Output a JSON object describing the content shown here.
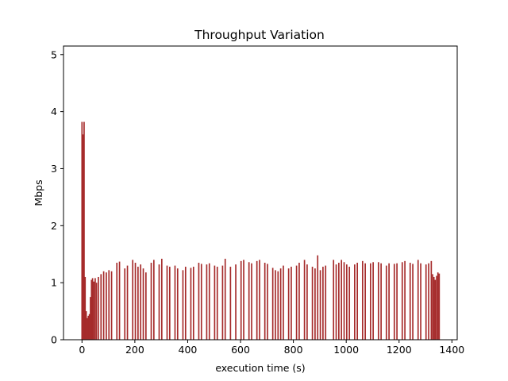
{
  "chart_data": {
    "type": "bar",
    "title": "Throughput Variation",
    "xlabel": "execution time (s)",
    "ylabel": "Mbps",
    "xlim": [
      -70,
      1420
    ],
    "ylim": [
      0,
      5.15
    ],
    "xticks": [
      0,
      200,
      400,
      600,
      800,
      1000,
      1200,
      1400
    ],
    "yticks": [
      0,
      1,
      2,
      3,
      4,
      5
    ],
    "grid": false,
    "bar_color": "#a52a2a",
    "bar_width": 5,
    "series": [
      {
        "x": [
          0,
          4,
          8,
          12,
          16,
          20,
          24,
          28,
          32,
          36,
          40,
          45,
          50,
          55,
          62,
          72,
          82,
          92,
          102,
          112,
          132,
          142,
          162,
          172,
          192,
          202,
          212,
          222,
          232,
          242,
          262,
          272,
          292,
          302,
          322,
          332,
          352,
          362,
          382,
          392,
          412,
          422,
          442,
          452,
          472,
          482,
          502,
          512,
          532,
          542,
          562,
          582,
          602,
          612,
          632,
          642,
          662,
          672,
          692,
          702,
          722,
          732,
          742,
          752,
          762,
          782,
          792,
          812,
          822,
          842,
          852,
          872,
          882,
          892,
          902,
          912,
          922,
          952,
          962,
          972,
          982,
          992,
          1002,
          1012,
          1032,
          1042,
          1062,
          1072,
          1092,
          1102,
          1122,
          1132,
          1152,
          1162,
          1182,
          1192,
          1212,
          1222,
          1242,
          1252,
          1272,
          1282,
          1302,
          1312,
          1322,
          1327,
          1332,
          1337,
          1342,
          1347,
          1352
        ],
        "values": [
          3.82,
          3.6,
          3.82,
          1.1,
          0.5,
          0.38,
          0.42,
          0.45,
          0.75,
          1.05,
          1.08,
          1.02,
          1.08,
          1.0,
          1.1,
          1.15,
          1.2,
          1.18,
          1.22,
          1.2,
          1.35,
          1.37,
          1.25,
          1.3,
          1.4,
          1.35,
          1.28,
          1.32,
          1.25,
          1.18,
          1.35,
          1.4,
          1.32,
          1.42,
          1.3,
          1.28,
          1.3,
          1.25,
          1.22,
          1.28,
          1.26,
          1.28,
          1.35,
          1.33,
          1.32,
          1.34,
          1.3,
          1.28,
          1.3,
          1.42,
          1.28,
          1.32,
          1.38,
          1.4,
          1.36,
          1.34,
          1.38,
          1.4,
          1.35,
          1.33,
          1.26,
          1.22,
          1.2,
          1.25,
          1.3,
          1.25,
          1.28,
          1.3,
          1.35,
          1.4,
          1.32,
          1.28,
          1.25,
          1.48,
          1.22,
          1.28,
          1.3,
          1.4,
          1.32,
          1.35,
          1.4,
          1.36,
          1.32,
          1.28,
          1.32,
          1.35,
          1.38,
          1.34,
          1.34,
          1.36,
          1.36,
          1.34,
          1.3,
          1.34,
          1.33,
          1.34,
          1.36,
          1.38,
          1.35,
          1.33,
          1.4,
          1.34,
          1.32,
          1.34,
          1.38,
          1.15,
          1.1,
          1.05,
          1.12,
          1.18,
          1.16
        ]
      }
    ]
  }
}
